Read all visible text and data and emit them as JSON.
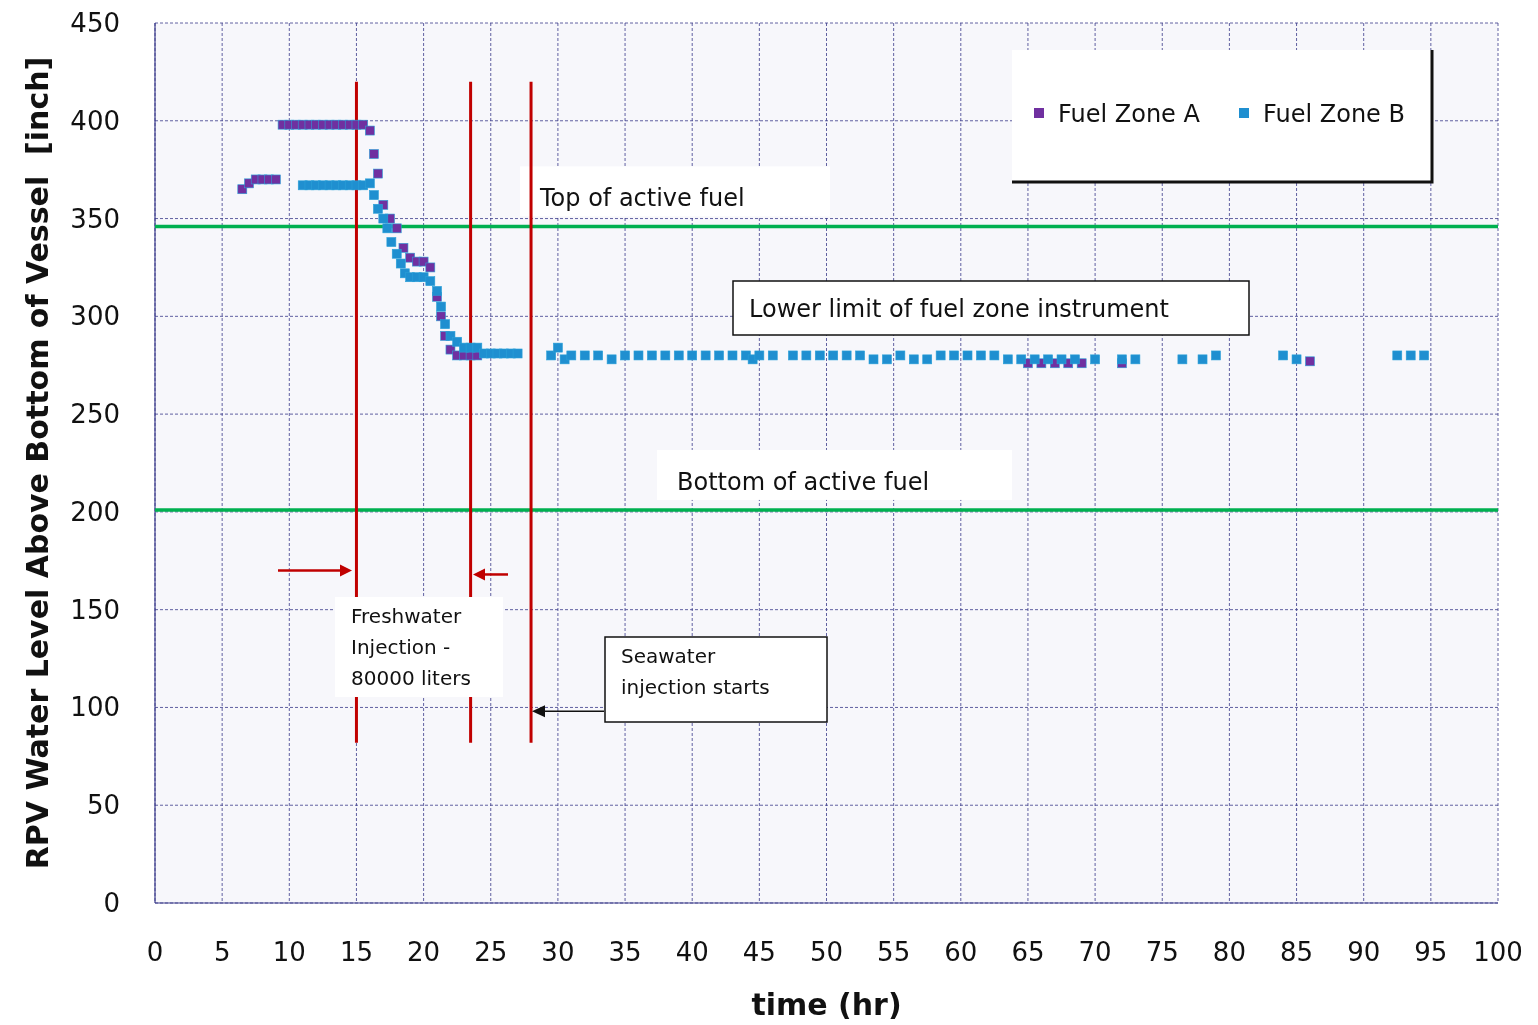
{
  "chart_data": {
    "type": "scatter",
    "xlabel": "time (hr)",
    "ylabel": "RPV Water Level Above Bottom of Vessel  [inch]",
    "xlim": [
      0,
      100
    ],
    "xticks": [
      0,
      5,
      10,
      15,
      20,
      25,
      30,
      35,
      40,
      45,
      50,
      55,
      60,
      65,
      70,
      75,
      80,
      85,
      90,
      95,
      100
    ],
    "ylim": [
      0,
      450
    ],
    "yticks": [
      0,
      50,
      100,
      150,
      200,
      250,
      300,
      350,
      400,
      450
    ],
    "grid": true,
    "legend": "top right",
    "marker": "square",
    "series": [
      {
        "name": "Fuel Zone A",
        "color": "#7030a0",
        "x": [
          6.5,
          7,
          7.5,
          8,
          8.5,
          9,
          9.5,
          10,
          10.5,
          11,
          11.5,
          12,
          12.5,
          13,
          13.5,
          14,
          14.5,
          15,
          15.5,
          16,
          16.3,
          16.6,
          17,
          17.5,
          18,
          18.5,
          19,
          19.5,
          20,
          20.5,
          21,
          21.3,
          21.6,
          22,
          22.5,
          23,
          23.5,
          24,
          65,
          66,
          67,
          68,
          69,
          72,
          86
        ],
        "values": [
          365,
          368,
          370,
          370,
          370,
          370,
          398,
          398,
          398,
          398,
          398,
          398,
          398,
          398,
          398,
          398,
          398,
          398,
          398,
          395,
          383,
          373,
          357,
          350,
          345,
          335,
          330,
          328,
          328,
          325,
          310,
          300,
          290,
          283,
          280,
          280,
          280,
          280,
          276,
          276,
          276,
          276,
          276,
          276,
          277
        ]
      },
      {
        "name": "Fuel Zone B",
        "color": "#1f8fd0",
        "x": [
          11,
          11.5,
          12,
          12.5,
          13,
          13.5,
          14,
          14.5,
          15,
          15.5,
          16,
          16.3,
          16.6,
          17,
          17.3,
          17.6,
          18,
          18.3,
          18.6,
          19,
          19.5,
          20,
          20.5,
          21,
          21.3,
          21.6,
          22,
          22.5,
          23,
          23.5,
          24,
          24.5,
          25,
          25.5,
          26,
          26.5,
          27,
          29.5,
          30,
          30.5,
          31,
          32,
          33,
          34,
          35,
          36,
          37,
          38,
          39,
          40,
          41,
          42,
          43,
          44,
          44.5,
          45,
          46,
          47.5,
          48.5,
          49.5,
          50.5,
          51.5,
          52.5,
          53.5,
          54.5,
          55.5,
          56.5,
          57.5,
          58.5,
          59.5,
          60.5,
          61.5,
          62.5,
          63.5,
          64.5,
          65.5,
          66.5,
          67.5,
          68.5,
          70,
          72,
          73,
          76.5,
          78,
          79,
          84,
          85,
          92.5,
          93.5,
          94.5
        ],
        "values": [
          367,
          367,
          367,
          367,
          367,
          367,
          367,
          367,
          367,
          367,
          368,
          362,
          355,
          350,
          345,
          338,
          332,
          327,
          322,
          320,
          320,
          320,
          318,
          313,
          305,
          296,
          290,
          287,
          284,
          284,
          284,
          281,
          281,
          281,
          281,
          281,
          281,
          280,
          284,
          278,
          280,
          280,
          280,
          278,
          280,
          280,
          280,
          280,
          280,
          280,
          280,
          280,
          280,
          280,
          278,
          280,
          280,
          280,
          280,
          280,
          280,
          280,
          280,
          278,
          278,
          280,
          278,
          278,
          280,
          280,
          280,
          280,
          280,
          278,
          278,
          278,
          278,
          278,
          278,
          278,
          278,
          278,
          278,
          278,
          280,
          280,
          278,
          280,
          280,
          280
        ]
      }
    ],
    "ref_lines": [
      {
        "axis": "y",
        "value": 346,
        "label": "Top of active fuel",
        "color": "#00b050"
      },
      {
        "axis": "y",
        "value": 201,
        "label": "Bottom of active fuel",
        "color": "#00b050"
      },
      {
        "axis": "x",
        "value": 15,
        "color": "#c00000"
      },
      {
        "axis": "x",
        "value": 23.5,
        "color": "#c00000"
      },
      {
        "axis": "x",
        "value": 28,
        "color": "#c00000"
      }
    ],
    "annotations": [
      "Lower limit of fuel zone instrument",
      "Freshwater Injection - 80000 liters",
      "Seawater injection starts"
    ]
  }
}
